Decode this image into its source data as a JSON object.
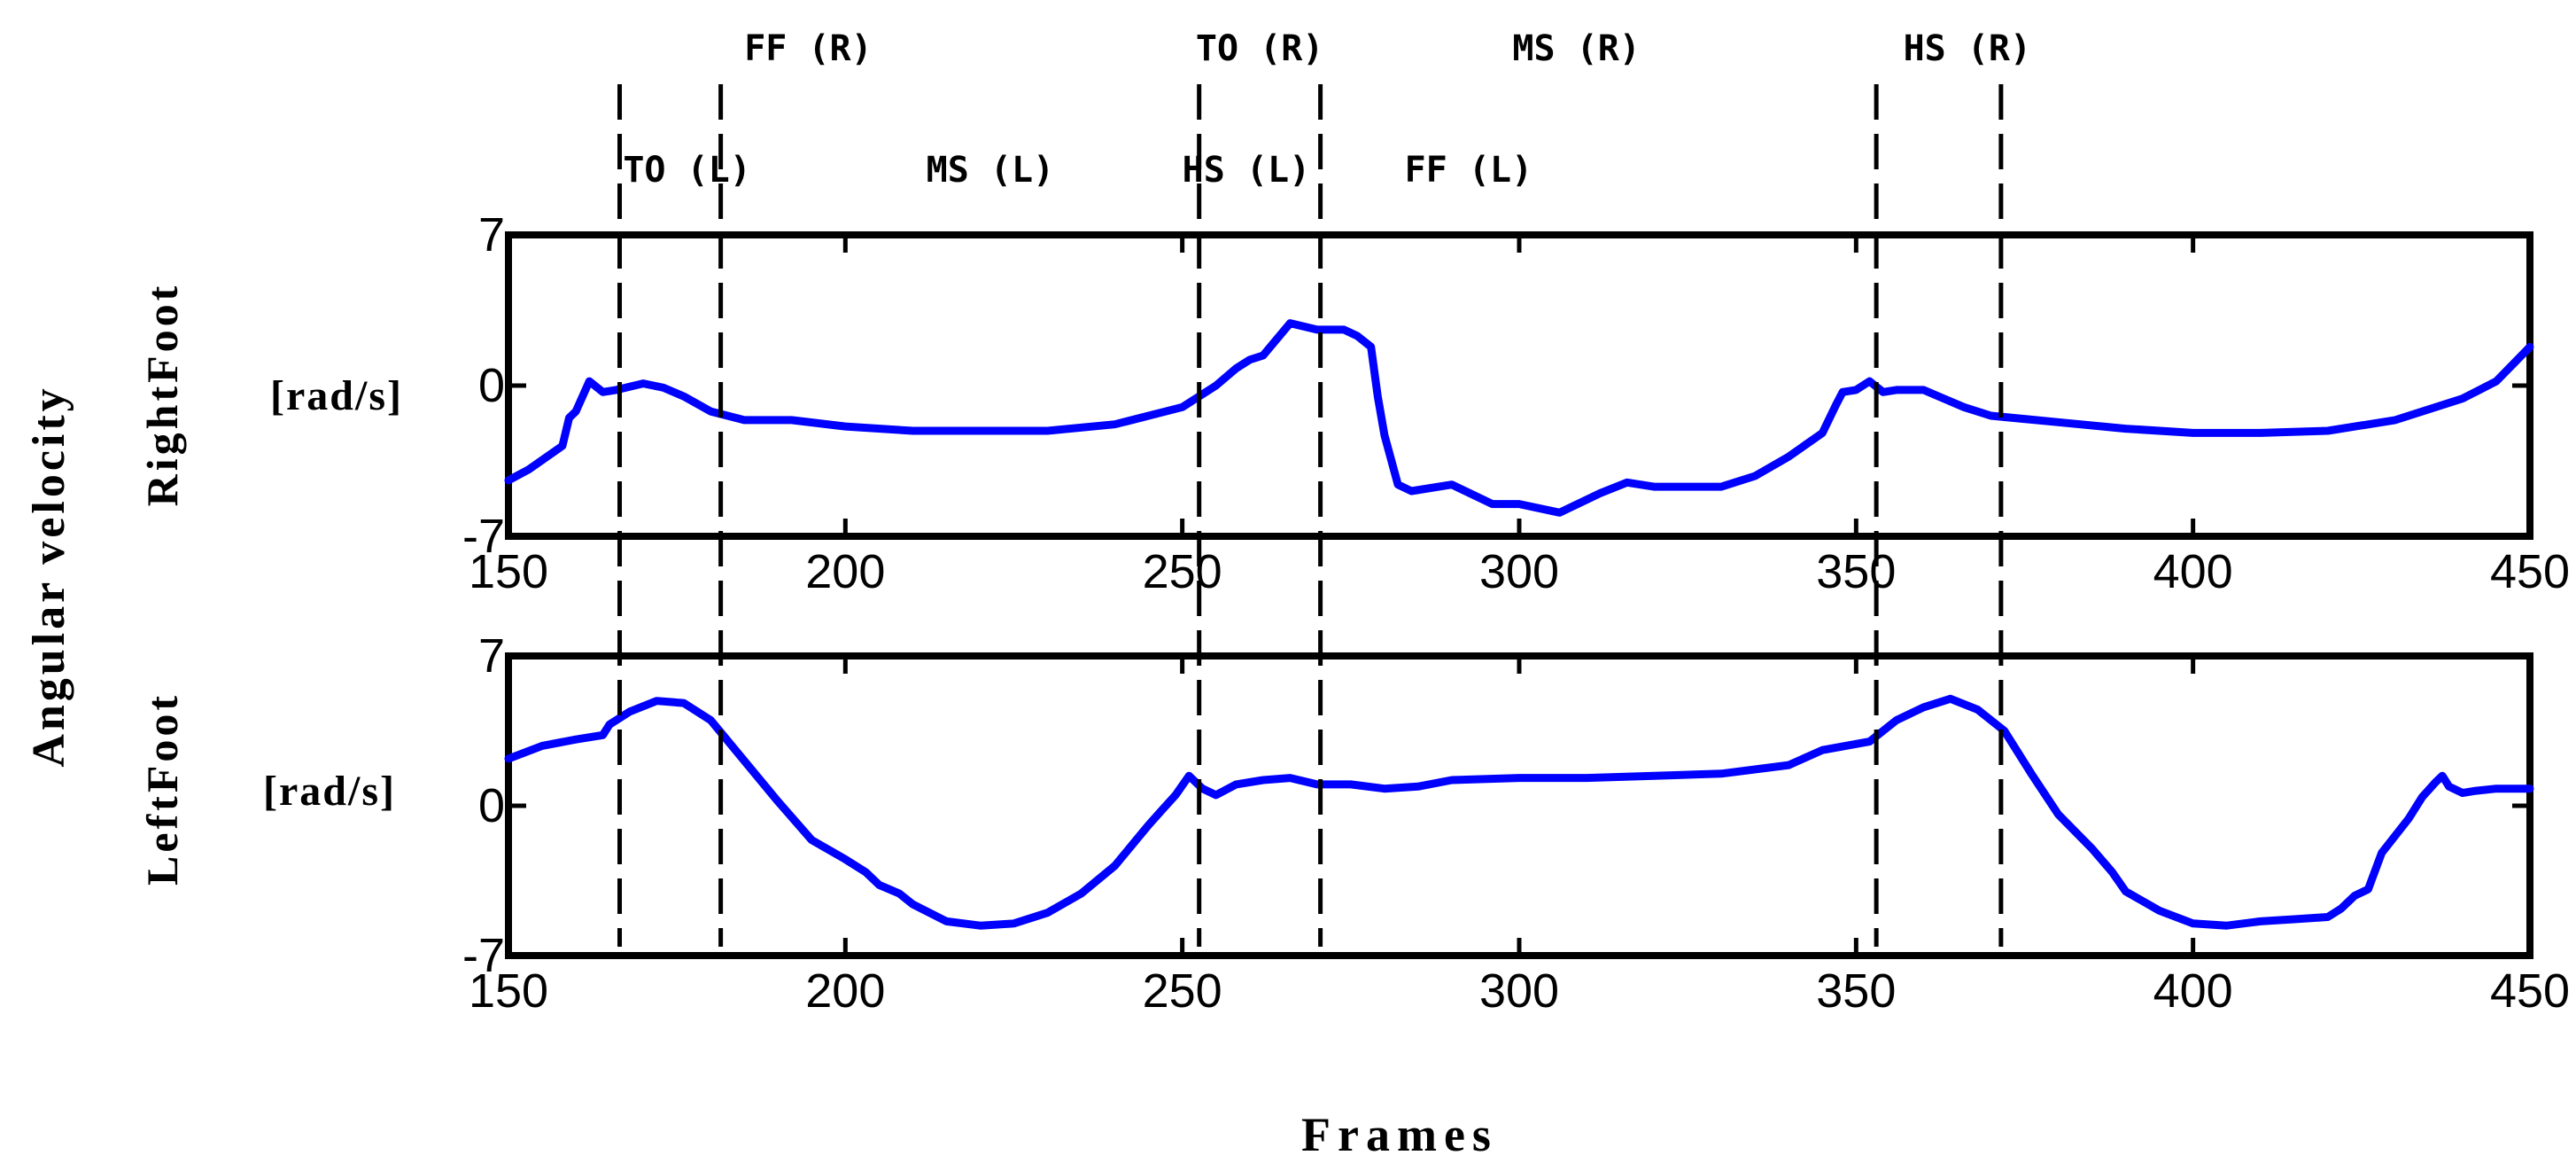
{
  "chart_data": {
    "type": "line",
    "ylabel": "Angular velocity",
    "xlabel": "Frames",
    "xlim": [
      150,
      450
    ],
    "xticks": [
      150,
      200,
      250,
      300,
      350,
      400,
      450
    ],
    "line_color": "#0000ff",
    "grid": false,
    "legend": "none",
    "event_lines_x": [
      166.5,
      181.5,
      252.5,
      270.5,
      353,
      371.5
    ],
    "phase_labels_top": [
      {
        "text": "FF (R)",
        "x": 185
      },
      {
        "text": "TO (R)",
        "x": 252
      },
      {
        "text": "MS (R)",
        "x": 299
      },
      {
        "text": "HS (R)",
        "x": 357
      }
    ],
    "phase_labels_bottom": [
      {
        "text": "TO (L)",
        "x": 167
      },
      {
        "text": "MS (L)",
        "x": 212
      },
      {
        "text": "HS (L)",
        "x": 250
      },
      {
        "text": "FF (L)",
        "x": 283
      }
    ],
    "panels": [
      {
        "name": "RightFoot",
        "unit": "[rad/s]",
        "ylim": [
          -7,
          7
        ],
        "yticks": [
          -7,
          0,
          7
        ],
        "series": [
          {
            "x": [
              150,
              153,
              158,
              159,
              160,
              162,
              164,
              166,
              170,
              173,
              176,
              180,
              185,
              192,
              200,
              210,
              220,
              230,
              240,
              250,
              255,
              258,
              260,
              262,
              266,
              270,
              274,
              276,
              278,
              279,
              280,
              282,
              284,
              290,
              296,
              300,
              306,
              312,
              316,
              320,
              330,
              335,
              340,
              345,
              347,
              348,
              350,
              352,
              354,
              356,
              360,
              363,
              366,
              370,
              380,
              390,
              400,
              410,
              420,
              430,
              440,
              445,
              450
            ],
            "y": [
              -4.4,
              -3.9,
              -2.8,
              -1.5,
              -1.2,
              0.2,
              -0.3,
              -0.2,
              0.1,
              -0.1,
              -0.5,
              -1.2,
              -1.6,
              -1.6,
              -1.9,
              -2.1,
              -2.1,
              -2.1,
              -1.8,
              -1.0,
              0.0,
              0.8,
              1.2,
              1.4,
              2.9,
              2.6,
              2.6,
              2.3,
              1.8,
              -0.5,
              -2.3,
              -4.6,
              -4.9,
              -4.6,
              -5.5,
              -5.5,
              -5.9,
              -5.0,
              -4.5,
              -4.7,
              -4.7,
              -4.2,
              -3.3,
              -2.2,
              -0.9,
              -0.3,
              -0.2,
              0.2,
              -0.3,
              -0.2,
              -0.2,
              -0.6,
              -1.0,
              -1.4,
              -1.7,
              -2.0,
              -2.2,
              -2.2,
              -2.1,
              -1.6,
              -0.6,
              0.2,
              1.8
            ]
          }
        ]
      },
      {
        "name": "LeftFoot",
        "unit": "[rad/s]",
        "ylim": [
          -7,
          7
        ],
        "yticks": [
          -7,
          0,
          7
        ],
        "series": [
          {
            "x": [
              150,
              155,
              160,
              164,
              165,
              168,
              172,
              176,
              180,
              185,
              190,
              195,
              200,
              203,
              205,
              208,
              210,
              215,
              220,
              225,
              230,
              235,
              240,
              245,
              247,
              249,
              251,
              253,
              255,
              258,
              262,
              266,
              270,
              275,
              280,
              285,
              290,
              300,
              310,
              320,
              330,
              340,
              345,
              352,
              356,
              360,
              364,
              368,
              372,
              376,
              380,
              385,
              388,
              390,
              395,
              400,
              405,
              410,
              415,
              420,
              422,
              424,
              426,
              428,
              432,
              434,
              436,
              437,
              438,
              440,
              442,
              445,
              450
            ],
            "y": [
              2.2,
              2.8,
              3.1,
              3.3,
              3.8,
              4.4,
              4.9,
              4.8,
              4.0,
              2.1,
              0.2,
              -1.6,
              -2.5,
              -3.1,
              -3.7,
              -4.1,
              -4.6,
              -5.4,
              -5.6,
              -5.5,
              -5.0,
              -4.1,
              -2.8,
              -0.9,
              -0.2,
              0.5,
              1.4,
              0.8,
              0.5,
              1.0,
              1.2,
              1.3,
              1.0,
              1.0,
              0.8,
              0.9,
              1.2,
              1.3,
              1.3,
              1.4,
              1.5,
              1.9,
              2.6,
              3.0,
              4.0,
              4.6,
              5.0,
              4.5,
              3.5,
              1.5,
              -0.4,
              -2.0,
              -3.1,
              -4.0,
              -4.9,
              -5.5,
              -5.6,
              -5.4,
              -5.3,
              -5.2,
              -4.8,
              -4.2,
              -3.9,
              -2.2,
              -0.6,
              0.4,
              1.1,
              1.4,
              0.9,
              0.6,
              0.7,
              0.8,
              0.8
            ]
          }
        ]
      }
    ]
  }
}
